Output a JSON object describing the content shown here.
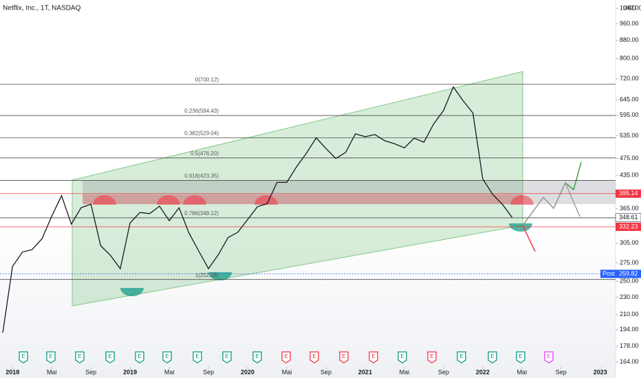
{
  "chart_data": {
    "type": "line",
    "title": "Netflix, Inc., 1T, NASDAQ",
    "y_unit": "USD",
    "log_scale": true,
    "color": "#131722",
    "x": [
      "2017-12",
      "2018-01",
      "2018-02",
      "2018-03",
      "2018-04",
      "2018-05",
      "2018-06",
      "2018-07",
      "2018-08",
      "2018-09",
      "2018-10",
      "2018-11",
      "2018-12",
      "2019-01",
      "2019-02",
      "2019-03",
      "2019-04",
      "2019-05",
      "2019-06",
      "2019-07",
      "2019-08",
      "2019-09",
      "2019-10",
      "2019-11",
      "2019-12",
      "2020-01",
      "2020-02",
      "2020-03",
      "2020-04",
      "2020-05",
      "2020-06",
      "2020-07",
      "2020-08",
      "2020-09",
      "2020-10",
      "2020-11",
      "2020-12",
      "2021-01",
      "2021-02",
      "2021-03",
      "2021-04",
      "2021-05",
      "2021-06",
      "2021-07",
      "2021-08",
      "2021-09",
      "2021-10",
      "2021-11",
      "2021-12",
      "2022-01",
      "2022-02",
      "2022-03",
      "2022-04"
    ],
    "values": [
      191,
      270,
      291,
      295,
      312,
      351,
      391,
      337,
      367,
      374,
      301,
      286,
      267,
      339,
      358,
      356,
      370,
      343,
      367,
      322,
      293,
      267,
      287,
      314,
      323,
      345,
      369,
      375,
      419,
      419,
      455,
      488,
      529,
      500,
      475,
      490,
      540,
      532,
      538,
      521,
      513,
      502,
      528,
      517,
      569,
      610,
      690,
      642,
      602,
      427,
      394,
      374,
      349
    ],
    "xlim": [
      "2017-12",
      "2023-02"
    ],
    "xticks": [
      {
        "value": "2018-01",
        "label": "2018"
      },
      {
        "value": "2018-05",
        "label": "Mai"
      },
      {
        "value": "2018-09",
        "label": "Sep"
      },
      {
        "value": "2019-01",
        "label": "2019"
      },
      {
        "value": "2019-05",
        "label": "Mai"
      },
      {
        "value": "2019-09",
        "label": "Sep"
      },
      {
        "value": "2020-01",
        "label": "2020"
      },
      {
        "value": "2020-05",
        "label": "Mai"
      },
      {
        "value": "2020-09",
        "label": "Sep"
      },
      {
        "value": "2021-01",
        "label": "2021"
      },
      {
        "value": "2021-05",
        "label": "Mai"
      },
      {
        "value": "2021-09",
        "label": "Sep"
      },
      {
        "value": "2022-01",
        "label": "2022"
      },
      {
        "value": "2022-05",
        "label": "Mai"
      },
      {
        "value": "2022-09",
        "label": "Sep"
      },
      {
        "value": "2023-01",
        "label": "2023"
      }
    ],
    "ylim": [
      162,
      1087
    ],
    "yticks": [
      {
        "value": 1040,
        "label": "1040.00"
      },
      {
        "value": 960,
        "label": "960.00"
      },
      {
        "value": 880,
        "label": "880.00"
      },
      {
        "value": 800,
        "label": "800.00"
      },
      {
        "value": 720,
        "label": "720.00"
      },
      {
        "value": 645,
        "label": "645.00"
      },
      {
        "value": 595,
        "label": "595.00"
      },
      {
        "value": 535,
        "label": "535.00"
      },
      {
        "value": 475,
        "label": "475.00"
      },
      {
        "value": 435,
        "label": "435.00"
      },
      {
        "value": 365,
        "label": "365.00"
      },
      {
        "value": 305,
        "label": "305.00"
      },
      {
        "value": 275,
        "label": "275.00"
      },
      {
        "value": 250,
        "label": "250.00"
      },
      {
        "value": 230,
        "label": "230.00"
      },
      {
        "value": 210,
        "label": "210.00"
      },
      {
        "value": 194,
        "label": "194.00"
      },
      {
        "value": 178,
        "label": "178.00"
      },
      {
        "value": 164,
        "label": "164.00"
      }
    ],
    "fib_levels": [
      {
        "value": 700.12,
        "label": "0(700.12)"
      },
      {
        "value": 594.43,
        "label": "0.236(594.43)"
      },
      {
        "value": 529.04,
        "label": "0.382(529.04)"
      },
      {
        "value": 476.2,
        "label": "0.5(476.20)"
      },
      {
        "value": 423.35,
        "label": "0.618(423.35)"
      },
      {
        "value": 348.12,
        "label": "0.786(348.12)"
      },
      {
        "value": 252.28,
        "label": "1(252.28)"
      }
    ],
    "price_lines": [
      {
        "value": 395.14,
        "color": "#f23645"
      },
      {
        "value": 348.61,
        "color": "#ffffff"
      },
      {
        "value": 332.23,
        "color": "#f23645"
      },
      {
        "value": 259.82,
        "color": "#2962ff",
        "tag": "Post"
      }
    ],
    "earnings": [
      {
        "label": "E",
        "color": "#089981"
      },
      {
        "label": "E",
        "color": "#089981"
      },
      {
        "label": "E",
        "color": "#089981"
      },
      {
        "label": "E",
        "color": "#089981"
      },
      {
        "label": "E",
        "color": "#089981"
      },
      {
        "label": "E",
        "color": "#089981"
      },
      {
        "label": "E",
        "color": "#089981"
      },
      {
        "label": "E",
        "color": "#089981"
      },
      {
        "label": "E",
        "color": "#089981"
      },
      {
        "label": "E",
        "color": "#f23645"
      },
      {
        "label": "E",
        "color": "#f23645"
      },
      {
        "label": "E",
        "color": "#f23645"
      },
      {
        "label": "E",
        "color": "#f23645"
      },
      {
        "label": "E",
        "color": "#089981"
      },
      {
        "label": "E",
        "color": "#f23645"
      },
      {
        "label": "E",
        "color": "#089981"
      },
      {
        "label": "E",
        "color": "#089981"
      },
      {
        "label": "E",
        "color": "#089981"
      },
      {
        "label": "E",
        "color": "#e040fb"
      }
    ]
  }
}
